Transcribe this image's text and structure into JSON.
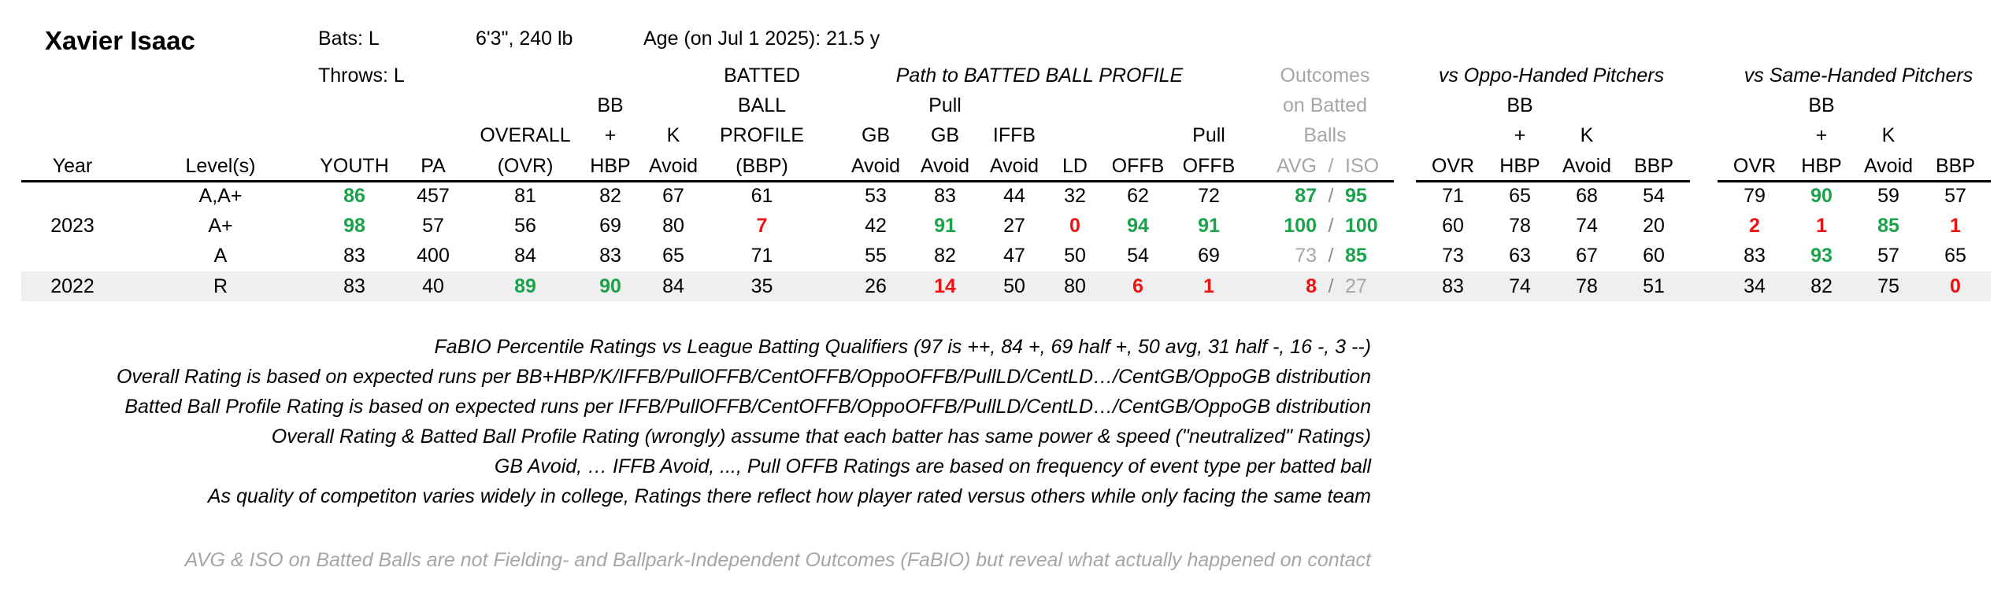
{
  "player": {
    "name": "Xavier Isaac",
    "bats": "Bats: L",
    "throws": "Throws: L",
    "size": "6'3\", 240 lb",
    "age": "Age (on Jul 1 2025): 21.5 y"
  },
  "group_headers": {
    "path": "Path to BATTED BALL PROFILE",
    "outcomes_1": "Outcomes",
    "outcomes_2": "on Batted",
    "outcomes_3": "Balls",
    "oppo": "vs Oppo-Handed Pitchers",
    "same": "vs Same-Handed Pitchers"
  },
  "headers": {
    "year": "Year",
    "level": "Level(s)",
    "youth": "YOUTH",
    "pa": "PA",
    "overall_1": "OVERALL",
    "overall_2": "(OVR)",
    "bbhbp_1": "BB",
    "bbhbp_2": "+",
    "bbhbp_3": "HBP",
    "kavoid_1": "K",
    "kavoid_2": "Avoid",
    "bbp_1": "BATTED",
    "bbp_2": "BALL",
    "bbp_3": "PROFILE",
    "bbp_4": "(BBP)",
    "gb_1": "GB",
    "gb_2": "Avoid",
    "pullgb_1": "Pull",
    "pullgb_2": "GB",
    "pullgb_3": "Avoid",
    "iffb_1": "IFFB",
    "iffb_2": "Avoid",
    "ld": "LD",
    "offb": "OFFB",
    "pulloffb_1": "Pull",
    "pulloffb_2": "OFFB",
    "avg": "AVG",
    "sep": "/",
    "iso": "ISO",
    "ovr": "OVR",
    "bb_1": "BB",
    "bb_2": "+",
    "bb_3": "HBP",
    "k_1": "K",
    "k_2": "Avoid",
    "sbbp": "BBP"
  },
  "rows": [
    {
      "year": "",
      "level": "A,A+",
      "youth": "86",
      "pa": "457",
      "ovr": "81",
      "bbhbp": "82",
      "kavoid": "67",
      "bbp": "61",
      "gb": "53",
      "pullgb": "83",
      "iffb": "44",
      "ld": "32",
      "offb": "62",
      "pulloffb": "72",
      "avg": "87",
      "iso": "95",
      "o_ovr": "71",
      "o_bb": "65",
      "o_k": "68",
      "o_bbp": "54",
      "s_ovr": "79",
      "s_bb": "90",
      "s_k": "59",
      "s_bbp": "57"
    },
    {
      "year": "2023",
      "level": "A+",
      "youth": "98",
      "pa": "57",
      "ovr": "56",
      "bbhbp": "69",
      "kavoid": "80",
      "bbp": "7",
      "gb": "42",
      "pullgb": "91",
      "iffb": "27",
      "ld": "0",
      "offb": "94",
      "pulloffb": "91",
      "avg": "100",
      "iso": "100",
      "o_ovr": "60",
      "o_bb": "78",
      "o_k": "74",
      "o_bbp": "20",
      "s_ovr": "2",
      "s_bb": "1",
      "s_k": "85",
      "s_bbp": "1"
    },
    {
      "year": "",
      "level": "A",
      "youth": "83",
      "pa": "400",
      "ovr": "84",
      "bbhbp": "83",
      "kavoid": "65",
      "bbp": "71",
      "gb": "55",
      "pullgb": "82",
      "iffb": "47",
      "ld": "50",
      "offb": "54",
      "pulloffb": "69",
      "avg": "73",
      "iso": "85",
      "o_ovr": "73",
      "o_bb": "63",
      "o_k": "67",
      "o_bbp": "60",
      "s_ovr": "83",
      "s_bb": "93",
      "s_k": "57",
      "s_bbp": "65"
    },
    {
      "year": "2022",
      "level": "R",
      "youth": "83",
      "pa": "40",
      "ovr": "89",
      "bbhbp": "90",
      "kavoid": "84",
      "bbp": "35",
      "gb": "26",
      "pullgb": "14",
      "iffb": "50",
      "ld": "80",
      "offb": "6",
      "pulloffb": "1",
      "avg": "8",
      "iso": "27",
      "o_ovr": "83",
      "o_bb": "74",
      "o_k": "78",
      "o_bbp": "51",
      "s_ovr": "34",
      "s_bb": "82",
      "s_k": "75",
      "s_bbp": "0"
    }
  ],
  "colors": {
    "green": "#1aa34a",
    "red": "#ee1111",
    "gray": "#a6a6a6",
    "row_shade": "#efefef"
  },
  "notes": [
    "FaBIO Percentile Ratings vs League Batting Qualifiers (97 is ++, 84 +, 69 half +, 50 avg, 31 half -, 16 -, 3 --)",
    "Overall Rating is based on expected runs per BB+HBP/K/IFFB/PullOFFB/CentOFFB/OppoOFFB/PullLD/CentLD…/CentGB/OppoGB distribution",
    "Batted Ball Profile Rating is based on expected runs per IFFB/PullOFFB/CentOFFB/OppoOFFB/PullLD/CentLD…/CentGB/OppoGB distribution",
    "Overall Rating & Batted Ball Profile Rating (wrongly) assume that each batter has same power & speed (\"neutralized\" Ratings)",
    "GB Avoid, … IFFB Avoid, ..., Pull OFFB Ratings are based on frequency of event type per batted ball",
    "As quality of competiton varies widely in college, Ratings there reflect how player rated versus others while only facing the same team"
  ],
  "footnote": "AVG & ISO on Batted Balls are not Fielding- and Ballpark-Independent Outcomes (FaBIO) but reveal what actually happened on contact"
}
